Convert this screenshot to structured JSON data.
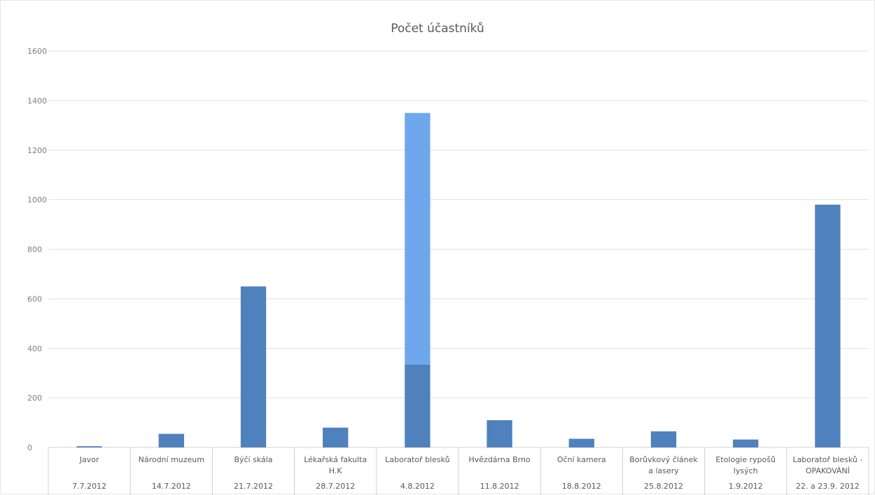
{
  "chart_data": {
    "type": "bar",
    "stacked": true,
    "title": "Počet účastníků",
    "xlabel": "",
    "ylabel": "",
    "ylim": [
      0,
      1600
    ],
    "yticks": [
      0,
      200,
      400,
      600,
      800,
      1000,
      1200,
      1400,
      1600
    ],
    "grid": true,
    "legend": "none",
    "categories": [
      {
        "name": [
          "Javor"
        ],
        "date": "7.7.2012"
      },
      {
        "name": [
          "Národní muzeum"
        ],
        "date": "14.7.2012"
      },
      {
        "name": [
          "Býčí skála"
        ],
        "date": "21.7.2012"
      },
      {
        "name": [
          "Lékařská fakulta",
          "H.K"
        ],
        "date": "28.7.2012"
      },
      {
        "name": [
          "Laboratoř blesků"
        ],
        "date": "4.8.2012"
      },
      {
        "name": [
          "Hvězdárna Brno"
        ],
        "date": "11.8.2012"
      },
      {
        "name": [
          "Oční kamera"
        ],
        "date": "18.8.2012"
      },
      {
        "name": [
          "Borůvkový článek",
          "a lasery"
        ],
        "date": "25.8.2012"
      },
      {
        "name": [
          "Etologie rypošů",
          "lysých"
        ],
        "date": "1.9.2012"
      },
      {
        "name": [
          "Laboratoř blesků -",
          "OPAKOVÁNÍ"
        ],
        "date": "22. a 23.9. 2012"
      }
    ],
    "series": [
      {
        "color": "#4f81bd",
        "values": [
          5,
          55,
          650,
          80,
          335,
          110,
          35,
          65,
          32,
          980
        ]
      },
      {
        "color": "#6fa7ed",
        "values": [
          0,
          0,
          0,
          0,
          1015,
          0,
          0,
          0,
          0,
          0
        ]
      }
    ]
  }
}
